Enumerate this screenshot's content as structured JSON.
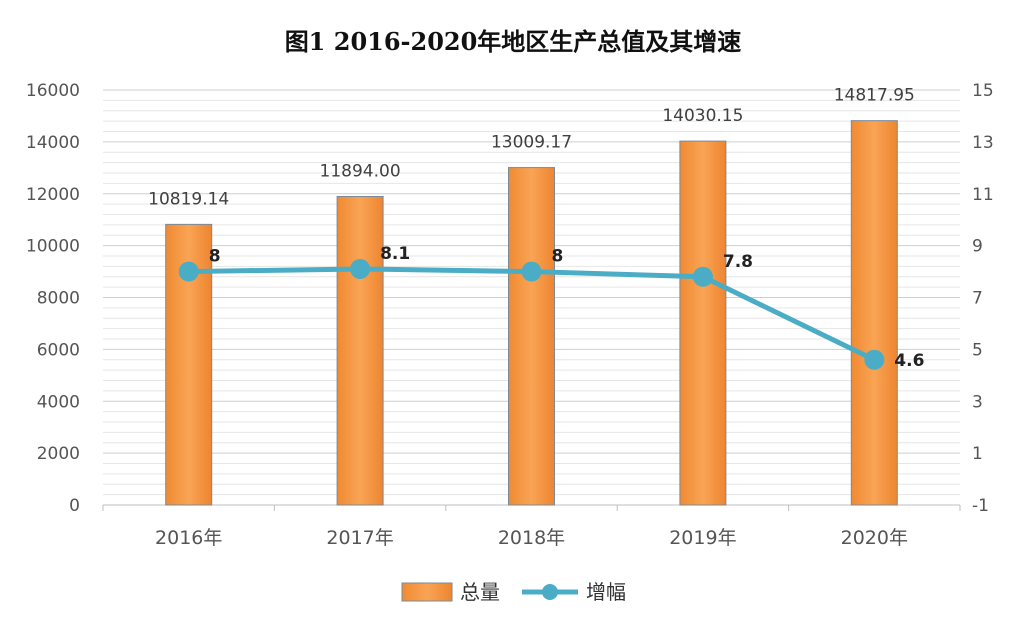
{
  "chart_data": {
    "type": "bar",
    "title": "图1  2016-2020年地区生产总值及其增速",
    "categories": [
      "2016年",
      "2017年",
      "2018年",
      "2019年",
      "2020年"
    ],
    "series": [
      {
        "name": "总量",
        "type": "bar",
        "axis": "left",
        "values": [
          10819.14,
          11894.0,
          13009.17,
          14030.15,
          14817.95
        ],
        "labels": [
          "10819.14",
          "11894.00",
          "13009.17",
          "14030.15",
          "14817.95"
        ],
        "color": "#F79646"
      },
      {
        "name": "增幅",
        "type": "line",
        "axis": "right",
        "values": [
          8,
          8.1,
          8,
          7.8,
          4.6
        ],
        "labels": [
          "8",
          "8.1",
          "8",
          "7.8",
          "4.6"
        ],
        "color": "#4BACC6"
      }
    ],
    "y_left": {
      "lim": [
        0,
        16000
      ],
      "ticks": [
        "0",
        "2000",
        "4000",
        "6000",
        "8000",
        "10000",
        "12000",
        "14000",
        "16000"
      ]
    },
    "y_right": {
      "lim": [
        -1,
        15
      ],
      "ticks": [
        "-1",
        "1",
        "3",
        "5",
        "7",
        "9",
        "11",
        "13",
        "15"
      ]
    },
    "grid": true,
    "legend_position": "bottom"
  }
}
